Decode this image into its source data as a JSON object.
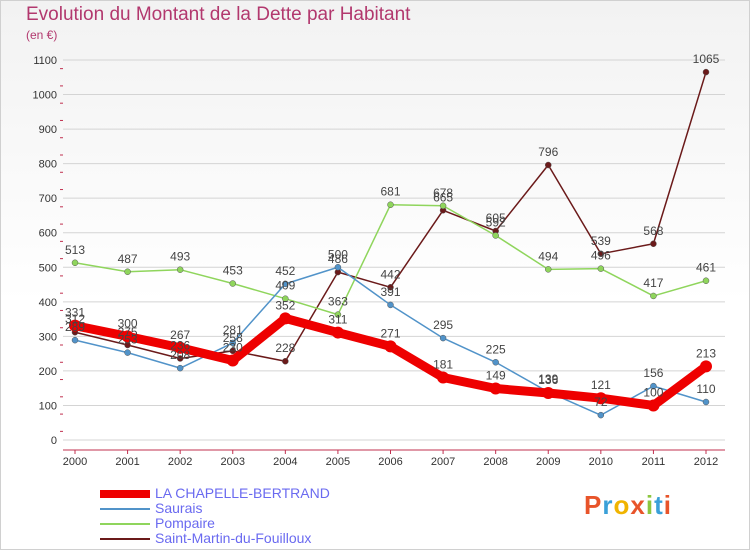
{
  "title": "Evolution du Montant de la Dette par Habitant",
  "subtitle": "(en €)",
  "watermark": "Proxiti",
  "chart_data": {
    "type": "line",
    "title": "Evolution du Montant de la Dette par Habitant",
    "ylabel": "(en €)",
    "ylim": [
      0,
      1100
    ],
    "yticks": [
      0,
      100,
      200,
      300,
      400,
      500,
      600,
      700,
      800,
      900,
      1000,
      1100
    ],
    "grid": true,
    "legend": "bottom-left",
    "x": [
      "2000",
      "2001",
      "2002",
      "2003",
      "2004",
      "2005",
      "2006",
      "2007",
      "2008",
      "2009",
      "2010",
      "2011",
      "2012"
    ],
    "series": [
      {
        "name": "LA CHAPELLE-BERTRAND",
        "color": "#ee0000",
        "values": [
          331,
          300,
          267,
          230,
          352,
          311,
          271,
          181,
          149,
          136,
          121,
          100,
          213
        ],
        "labels": [
          "331",
          "300",
          "267",
          "230",
          "352",
          "311",
          "271",
          "181",
          "149",
          "136",
          "121",
          "100",
          "213"
        ]
      },
      {
        "name": "Saurais",
        "color": "#5193c9",
        "values": [
          289,
          253,
          208,
          281,
          452,
          500,
          391,
          295,
          225,
          139,
          72,
          156,
          110
        ],
        "labels": [
          "289",
          "253",
          "208",
          "281",
          "452",
          "500",
          "391",
          "295",
          "225",
          "139",
          "72",
          "156",
          "110"
        ]
      },
      {
        "name": "Pompaire",
        "color": "#8fd55c",
        "values": [
          513,
          487,
          493,
          453,
          409,
          363,
          681,
          678,
          592,
          494,
          496,
          417,
          461
        ],
        "labels": [
          "513",
          "487",
          "493",
          "453",
          "409",
          "363",
          "681",
          "678",
          "592",
          "494",
          "496",
          "417",
          "461"
        ]
      },
      {
        "name": "Saint-Martin-du-Fouilloux",
        "color": "#6b1a1a",
        "values": [
          312,
          275,
          236,
          258,
          228,
          486,
          442,
          665,
          605,
          796,
          539,
          568,
          1065
        ],
        "labels": [
          "312",
          "275",
          "236",
          "258",
          "228",
          "486",
          "442",
          "665",
          "605",
          "796",
          "539",
          "568",
          "1065"
        ]
      }
    ]
  }
}
